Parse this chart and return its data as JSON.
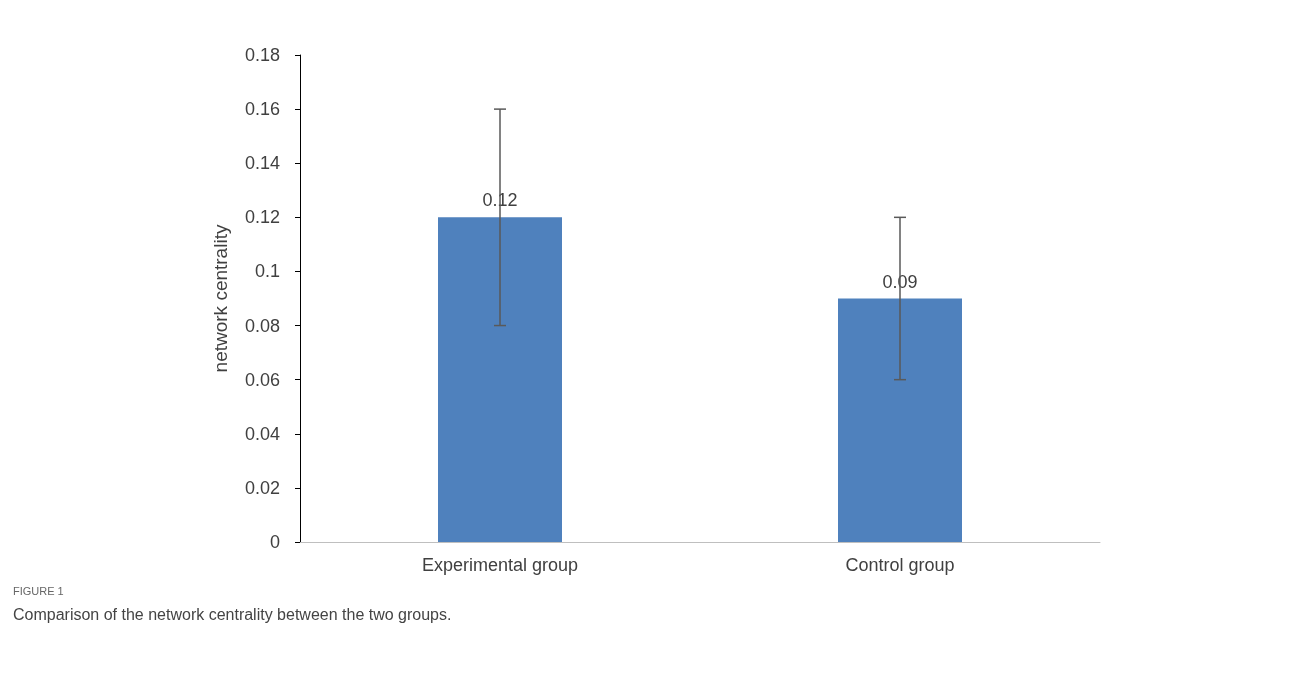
{
  "chart_data": {
    "type": "bar",
    "title": "FIGURE 1",
    "subtitle": "Comparison of the network centrality between the two groups.",
    "ylabel": "network centrality",
    "categories": [
      "Experimental group",
      "Control group"
    ],
    "values": [
      0.12,
      0.09
    ],
    "errors": [
      0.04,
      0.03
    ],
    "color": "#4f81bd",
    "ylim": [
      0,
      0.18
    ],
    "yticks": [
      0,
      0.02,
      0.04,
      0.06,
      0.08,
      0.1,
      0.12,
      0.14,
      0.16,
      0.18
    ],
    "data_labels": true,
    "grid": false
  }
}
